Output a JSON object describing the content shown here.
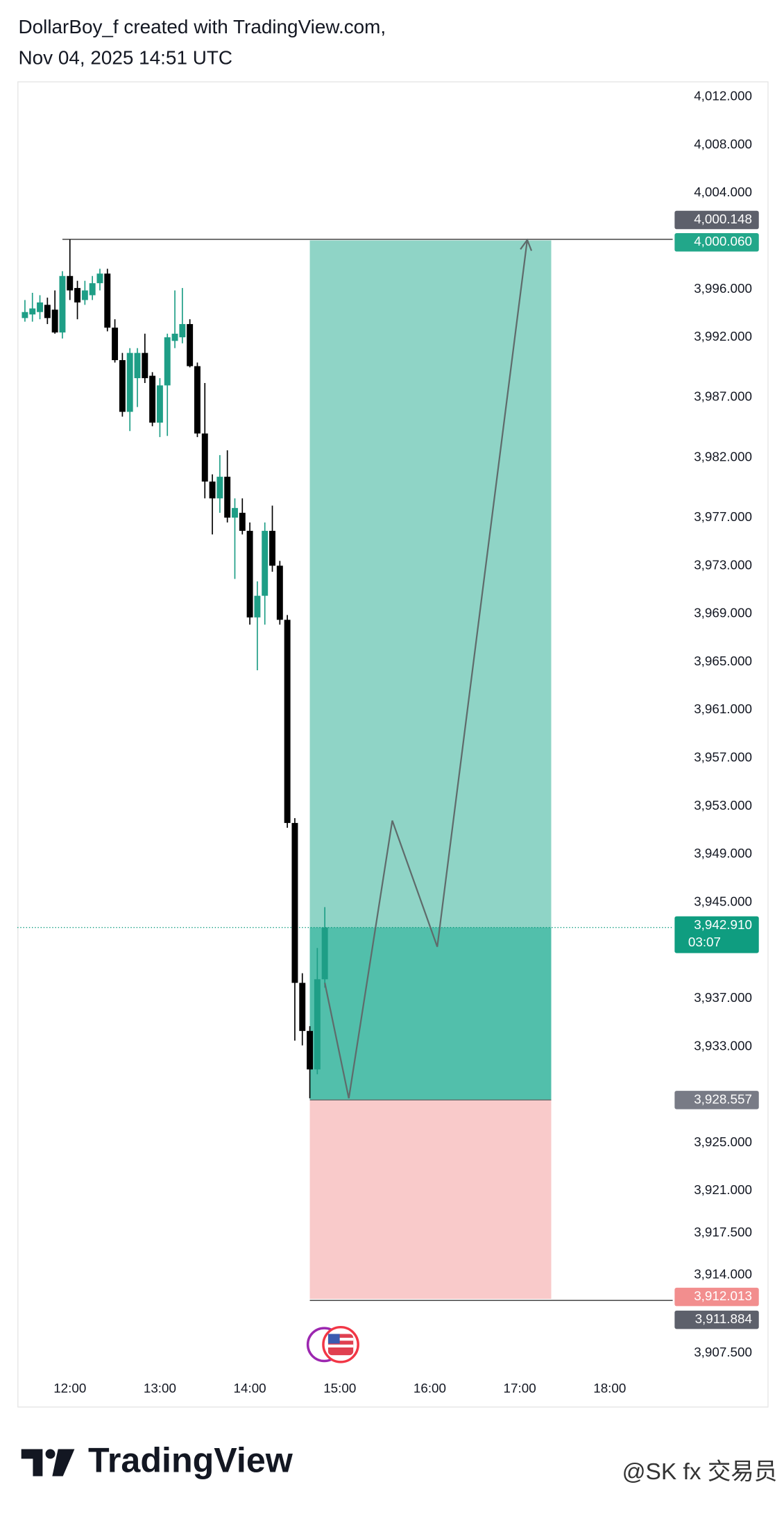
{
  "header": {
    "line1": "DollarBoy_f created with TradingView.com,",
    "line2": "Nov 04, 2025 14:51 UTC"
  },
  "chart_data": {
    "type": "candlestick",
    "up_color": "#1e9e86",
    "down_color": "#000000",
    "x": [
      "11:30",
      "11:35",
      "11:40",
      "11:45",
      "11:50",
      "11:55",
      "12:00",
      "12:05",
      "12:10",
      "12:15",
      "12:20",
      "12:25",
      "12:30",
      "12:35",
      "12:40",
      "12:45",
      "12:50",
      "12:55",
      "13:00",
      "13:05",
      "13:10",
      "13:15",
      "13:20",
      "13:25",
      "13:30",
      "13:35",
      "13:40",
      "13:45",
      "13:50",
      "13:55",
      "14:00",
      "14:05",
      "14:10",
      "14:15",
      "14:20",
      "14:25",
      "14:30",
      "14:35",
      "14:40",
      "14:45",
      "14:50"
    ],
    "open": [
      3993.6,
      3993.9,
      3994.1,
      3994.7,
      3994.3,
      3992.4,
      3997.1,
      3996.1,
      3995.1,
      3995.5,
      3996.5,
      3997.3,
      3992.8,
      3990.1,
      3985.8,
      3988.6,
      3990.7,
      3988.8,
      3984.9,
      3988.0,
      3991.7,
      3992.0,
      3993.1,
      3989.6,
      3984.0,
      3980.0,
      3978.6,
      3980.4,
      3977.0,
      3977.4,
      3975.9,
      3968.7,
      3970.5,
      3975.9,
      3973.0,
      3968.5,
      3951.6,
      3938.3,
      3934.3,
      3931.1,
      3938.6
    ],
    "high": [
      3995.1,
      3995.7,
      3995.5,
      3995.3,
      3995.9,
      3997.5,
      4000.148,
      3996.7,
      3996.7,
      3997.1,
      3997.7,
      3997.7,
      3993.5,
      3990.7,
      3991.1,
      3991.1,
      3992.3,
      3989.1,
      3988.6,
      3992.3,
      3995.9,
      3996.1,
      3993.5,
      3989.9,
      3988.2,
      3980.6,
      3982.2,
      3982.6,
      3978.6,
      3978.6,
      3976.6,
      3971.7,
      3976.6,
      3978.0,
      3973.4,
      3968.9,
      3952.0,
      3939.1,
      3934.7,
      3941.2,
      3944.6
    ],
    "low": [
      3993.3,
      3993.3,
      3993.5,
      3993.1,
      3992.3,
      3991.9,
      3995.1,
      3993.5,
      3994.7,
      3995.1,
      3995.9,
      3992.5,
      3989.9,
      3985.4,
      3984.2,
      3986.2,
      3988.2,
      3984.6,
      3983.7,
      3983.8,
      3991.1,
      3991.5,
      3989.5,
      3983.7,
      3978.6,
      3975.6,
      3977.4,
      3976.6,
      3971.9,
      3975.6,
      3968.1,
      3964.3,
      3968.1,
      3972.5,
      3968.1,
      3951.2,
      3933.5,
      3933.1,
      3928.7,
      3930.7,
      3937.9
    ],
    "close": [
      3994.1,
      3994.4,
      3994.9,
      3993.6,
      3992.4,
      3997.1,
      3995.9,
      3994.9,
      3995.9,
      3996.5,
      3997.3,
      3992.8,
      3990.1,
      3985.8,
      3990.7,
      3990.7,
      3988.6,
      3984.9,
      3988.0,
      3992.0,
      3992.3,
      3993.1,
      3989.6,
      3984.0,
      3980.0,
      3978.6,
      3980.4,
      3977.0,
      3977.8,
      3975.9,
      3968.7,
      3970.5,
      3975.9,
      3973.0,
      3968.5,
      3951.6,
      3938.3,
      3934.3,
      3931.1,
      3938.6,
      3942.91
    ],
    "xlim": [
      "11:25",
      "18:42"
    ],
    "xticks": [
      "12:00",
      "13:00",
      "14:00",
      "15:00",
      "16:00",
      "17:00",
      "18:00"
    ],
    "ylim": [
      3906.12,
      4013.29
    ],
    "yticks": [
      {
        "value": 4012,
        "label": "4,012.000"
      },
      {
        "value": 4008,
        "label": "4,008.000"
      },
      {
        "value": 4004,
        "label": "4,004.000"
      },
      {
        "value": 3996,
        "label": "3,996.000"
      },
      {
        "value": 3992,
        "label": "3,992.000"
      },
      {
        "value": 3987,
        "label": "3,987.000"
      },
      {
        "value": 3982,
        "label": "3,982.000"
      },
      {
        "value": 3977,
        "label": "3,977.000"
      },
      {
        "value": 3973,
        "label": "3,973.000"
      },
      {
        "value": 3969,
        "label": "3,969.000"
      },
      {
        "value": 3965,
        "label": "3,965.000"
      },
      {
        "value": 3961,
        "label": "3,961.000"
      },
      {
        "value": 3957,
        "label": "3,957.000"
      },
      {
        "value": 3953,
        "label": "3,953.000"
      },
      {
        "value": 3949,
        "label": "3,949.000"
      },
      {
        "value": 3945,
        "label": "3,945.000"
      },
      {
        "value": 3937,
        "label": "3,937.000"
      },
      {
        "value": 3933,
        "label": "3,933.000"
      },
      {
        "value": 3925,
        "label": "3,925.000"
      },
      {
        "value": 3921,
        "label": "3,921.000"
      },
      {
        "value": 3917.5,
        "label": "3,917.500"
      },
      {
        "value": 3914,
        "label": "3,914.000"
      },
      {
        "value": 3907.5,
        "label": "3,907.500"
      }
    ],
    "position": {
      "start": "14:40",
      "end": "17:21",
      "entry": 3928.557,
      "target": 4000.06,
      "stop": 3912.013,
      "profit_color": "#8fd4c6",
      "open_profit_color": "#52bfab",
      "loss_color": "#f9caca"
    },
    "current_price": {
      "value": 3942.91,
      "label": "3,942.910",
      "countdown": "03:07",
      "color": "#0f9d80"
    },
    "price_labels": [
      {
        "value": 4000.148,
        "label": "4,000.148",
        "color": "#5d606b",
        "line_from": "11:55"
      },
      {
        "value": 4000.06,
        "label": "4,000.060",
        "color": "#22a78a"
      },
      {
        "value": 3928.557,
        "label": "3,928.557",
        "color": "#787b86"
      },
      {
        "value": 3912.013,
        "label": "3,912.013",
        "color": "#f28e8e"
      },
      {
        "value": 3911.884,
        "label": "3,911.884",
        "color": "#5d606b",
        "line_from": "14:40"
      }
    ],
    "projection": {
      "x": [
        "14:50",
        "15:06",
        "15:35",
        "16:05",
        "17:05"
      ],
      "values": [
        3938.3,
        3928.7,
        3951.8,
        3941.3,
        4000.1
      ],
      "color": "#5f6b6b"
    }
  },
  "footer": {
    "brand": "TradingView",
    "watermark": "@SK fx 交易员"
  }
}
